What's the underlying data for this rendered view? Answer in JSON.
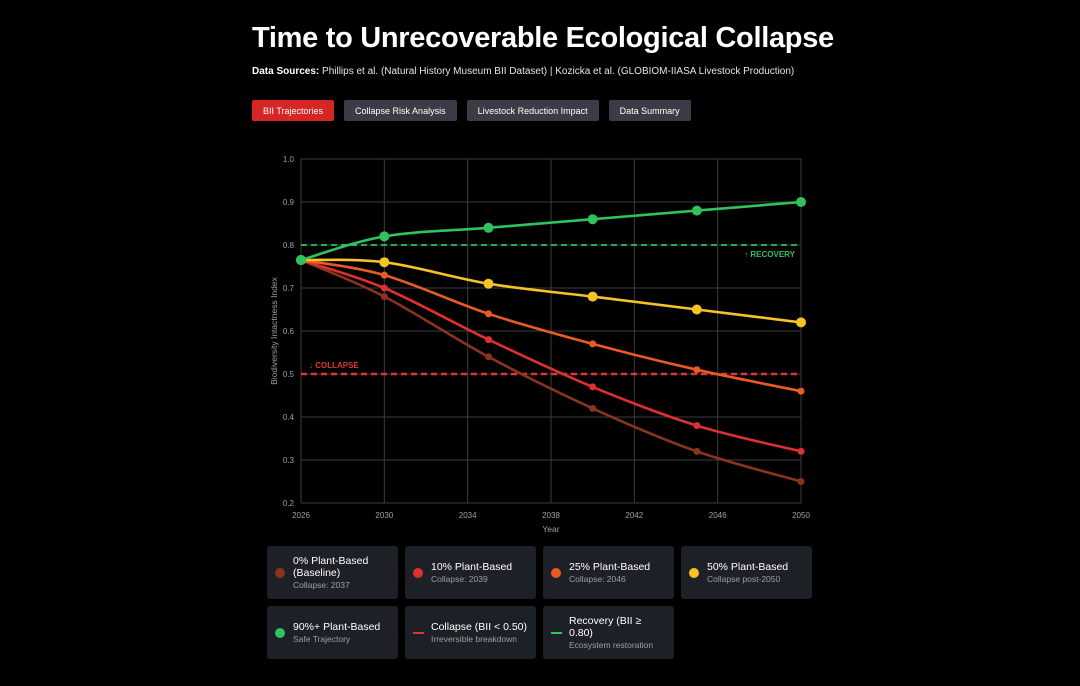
{
  "header": {
    "title": "Time to Unrecoverable Ecological Collapse",
    "sources_label": "Data Sources:",
    "sources_text": "Phillips et al. (Natural History Museum BII Dataset) | Kozicka et al. (GLOBIOM-IIASA Livestock Production)"
  },
  "tabs": [
    {
      "label": "BII Trajectories",
      "active": true
    },
    {
      "label": "Collapse Risk Analysis",
      "active": false
    },
    {
      "label": "Livestock Reduction Impact",
      "active": false
    },
    {
      "label": "Data Summary",
      "active": false
    }
  ],
  "chart_data": {
    "type": "line",
    "xlabel": "Year",
    "ylabel": "Biodiversity Intactness Index",
    "xlim": [
      2026,
      2050
    ],
    "ylim": [
      0.2,
      1.0
    ],
    "x_ticks": [
      "2026",
      "2030",
      "2034",
      "2038",
      "2042",
      "2046",
      "2050"
    ],
    "y_ticks": [
      "0.2",
      "0.3",
      "0.4",
      "0.5",
      "0.6",
      "0.7",
      "0.8",
      "0.9",
      "1.0"
    ],
    "grid": true,
    "x": [
      2026,
      2030,
      2035,
      2040,
      2045,
      2050
    ],
    "series": [
      {
        "name": "0% Plant-Based (Baseline)",
        "color": "#8a3420",
        "marker": "small",
        "values": [
          0.765,
          0.68,
          0.54,
          0.42,
          0.32,
          0.25
        ]
      },
      {
        "name": "10% Plant-Based",
        "color": "#de3030",
        "marker": "small",
        "values": [
          0.765,
          0.7,
          0.58,
          0.47,
          0.38,
          0.32
        ]
      },
      {
        "name": "25% Plant-Based",
        "color": "#ea5b24",
        "marker": "small",
        "values": [
          0.765,
          0.73,
          0.64,
          0.57,
          0.51,
          0.46
        ]
      },
      {
        "name": "50% Plant-Based",
        "color": "#f5c326",
        "marker": "large",
        "values": [
          0.765,
          0.76,
          0.71,
          0.68,
          0.65,
          0.62
        ]
      },
      {
        "name": "90%+ Plant-Based",
        "color": "#2fc25f",
        "marker": "large",
        "values": [
          0.765,
          0.82,
          0.84,
          0.86,
          0.88,
          0.9
        ]
      }
    ],
    "thresholds": [
      {
        "value": 0.5,
        "label": "↓ COLLAPSE",
        "color": "#e03535"
      },
      {
        "value": 0.8,
        "label": "↑ RECOVERY",
        "color": "#2fc25f"
      }
    ]
  },
  "legend": [
    {
      "name": "0% Plant-Based (Baseline)",
      "sub": "Collapse: 2037",
      "color": "#8a3420",
      "style": "dot"
    },
    {
      "name": "10% Plant-Based",
      "sub": "Collapse: 2039",
      "color": "#de3030",
      "style": "dot"
    },
    {
      "name": "25% Plant-Based",
      "sub": "Collapse: 2046",
      "color": "#ea5b24",
      "style": "dot"
    },
    {
      "name": "50% Plant-Based",
      "sub": "Collapse post-2050",
      "color": "#f5c326",
      "style": "dot"
    },
    {
      "name": "90%+ Plant-Based",
      "sub": "Safe Trajectory",
      "color": "#2fc25f",
      "style": "dot"
    },
    {
      "name": "Collapse (BII < 0.50)",
      "sub": "Irreversible breakdown",
      "color": "#e03535",
      "style": "dash"
    },
    {
      "name": "Recovery (BII ≥ 0.80)",
      "sub": "Ecosystem restoration",
      "color": "#2fc25f",
      "style": "dash"
    }
  ]
}
